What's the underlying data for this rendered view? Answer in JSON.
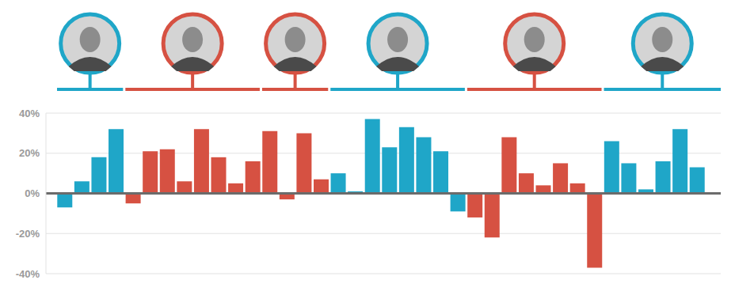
{
  "chart_data": {
    "type": "bar",
    "categories": [
      null,
      null,
      null,
      null,
      null,
      null,
      null,
      null,
      null,
      null,
      null,
      null,
      null,
      null,
      null,
      null,
      null,
      null,
      null,
      null,
      null,
      null,
      null,
      null,
      null,
      null,
      null,
      null,
      null,
      null,
      null,
      null,
      null,
      null,
      null,
      null,
      null,
      null
    ],
    "values": [
      -7,
      6,
      18,
      32,
      -5,
      21,
      22,
      6,
      32,
      18,
      5,
      16,
      31,
      -3,
      30,
      7,
      10,
      1,
      37,
      23,
      33,
      28,
      21,
      -9,
      -12,
      -22,
      28,
      10,
      4,
      15,
      5,
      -37,
      26,
      15,
      2,
      16,
      32,
      13
    ],
    "colors": [
      "#1fa6c8",
      "#1fa6c8",
      "#1fa6c8",
      "#1fa6c8",
      "#d65142",
      "#d65142",
      "#d65142",
      "#d65142",
      "#d65142",
      "#d65142",
      "#d65142",
      "#d65142",
      "#d65142",
      "#d65142",
      "#d65142",
      "#d65142",
      "#1fa6c8",
      "#1fa6c8",
      "#1fa6c8",
      "#1fa6c8",
      "#1fa6c8",
      "#1fa6c8",
      "#1fa6c8",
      "#1fa6c8",
      "#d65142",
      "#d65142",
      "#d65142",
      "#d65142",
      "#d65142",
      "#d65142",
      "#d65142",
      "#d65142",
      "#1fa6c8",
      "#1fa6c8",
      "#1fa6c8",
      "#1fa6c8",
      "#1fa6c8",
      "#1fa6c8"
    ],
    "ylim": [
      -40,
      40
    ],
    "yticks": [
      {
        "value": -40,
        "label": "-40%"
      },
      {
        "value": -20,
        "label": "-20%"
      },
      {
        "value": 0,
        "label": "0%"
      },
      {
        "value": 20,
        "label": "20%"
      },
      {
        "value": 40,
        "label": "40%"
      }
    ],
    "grid": true
  }
}
